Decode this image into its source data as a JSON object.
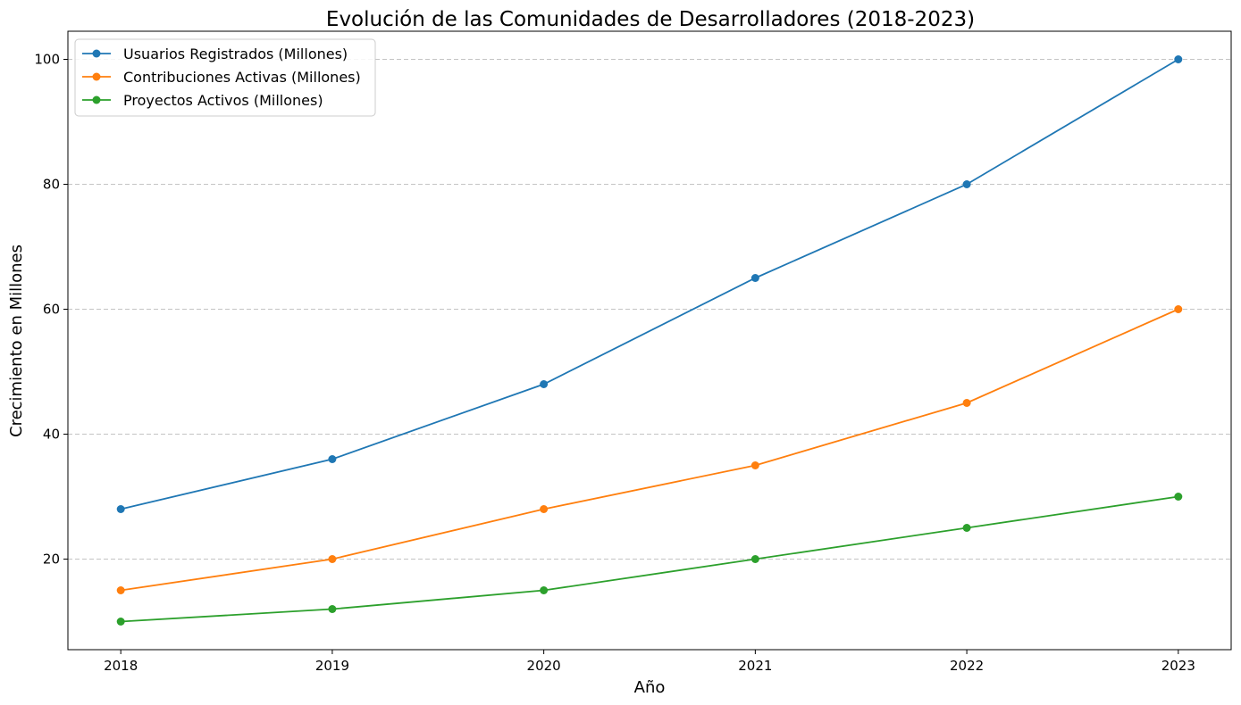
{
  "chart_data": {
    "type": "line",
    "title": "Evolución de las Comunidades de Desarrolladores (2018-2023)",
    "xlabel": "Año",
    "ylabel": "Crecimiento en Millones",
    "x": [
      2018,
      2019,
      2020,
      2021,
      2022,
      2023
    ],
    "x_tick_labels": [
      "2018",
      "2019",
      "2020",
      "2021",
      "2022",
      "2023"
    ],
    "y_ticks": [
      20,
      40,
      60,
      80,
      100
    ],
    "y_tick_labels": [
      "20",
      "40",
      "60",
      "80",
      "100"
    ],
    "xlim": [
      2017.75,
      2023.25
    ],
    "ylim": [
      5.5,
      104.5
    ],
    "grid": "horizontal dashed",
    "legend_position": "top-left",
    "series": [
      {
        "name": "Usuarios Registrados (Millones)",
        "color": "#1f77b4",
        "values": [
          28,
          36,
          48,
          65,
          80,
          100
        ]
      },
      {
        "name": "Contribuciones Activas (Millones)",
        "color": "#ff7f0e",
        "values": [
          15,
          20,
          28,
          35,
          45,
          60
        ]
      },
      {
        "name": "Proyectos Activos (Millones)",
        "color": "#2ca02c",
        "values": [
          10,
          12,
          15,
          20,
          25,
          30
        ]
      }
    ]
  }
}
